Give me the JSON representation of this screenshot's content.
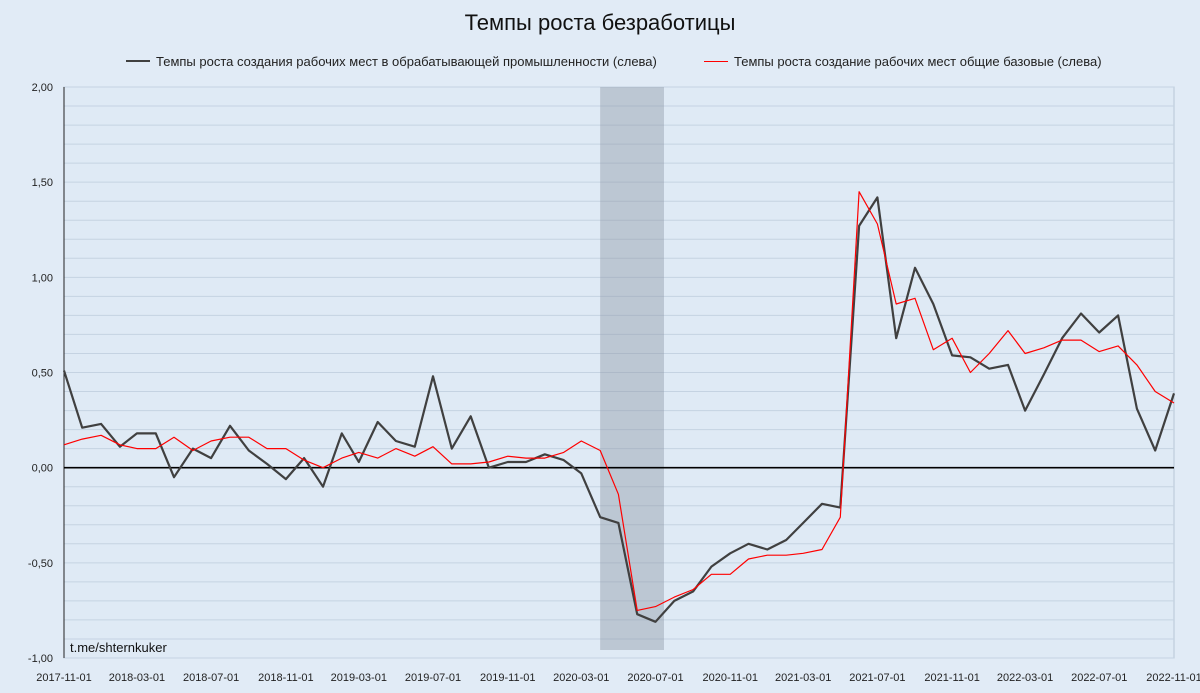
{
  "chart_data": {
    "type": "line",
    "title": "Темпы роста безработицы",
    "xlabel": "",
    "ylabel": "",
    "ylim": [
      -1.0,
      2.0
    ],
    "yticks": [
      "-1,00",
      "-0,50",
      "0,00",
      "0,50",
      "1,00",
      "1,50",
      "2,00"
    ],
    "ytick_values": [
      -1.0,
      -0.5,
      0.0,
      0.5,
      1.0,
      1.5,
      2.0
    ],
    "xlim": [
      "2017-11-01",
      "2022-11-01"
    ],
    "xticks": [
      "2017-11-01",
      "2018-03-01",
      "2018-07-01",
      "2018-11-01",
      "2019-03-01",
      "2019-07-01",
      "2019-11-01",
      "2020-03-01",
      "2020-07-01",
      "2020-11-01",
      "2021-03-01",
      "2021-07-01",
      "2021-11-01",
      "2022-03-01",
      "2022-07-01",
      "2022-11-01"
    ],
    "shaded_period": [
      "2020-04-01",
      "2020-07-15"
    ],
    "grid": true,
    "legend_position": "top",
    "series": [
      {
        "name": "Темпы роста создания рабочих мест в обрабатывающей промышленности (слева)",
        "color": "#404040",
        "points": [
          [
            "2017-11-01",
            0.51
          ],
          [
            "2017-12-01",
            0.21
          ],
          [
            "2018-01-01",
            0.23
          ],
          [
            "2018-02-01",
            0.11
          ],
          [
            "2018-03-01",
            0.18
          ],
          [
            "2018-04-01",
            0.18
          ],
          [
            "2018-05-01",
            -0.05
          ],
          [
            "2018-06-01",
            0.1
          ],
          [
            "2018-07-01",
            0.05
          ],
          [
            "2018-08-01",
            0.22
          ],
          [
            "2018-09-01",
            0.09
          ],
          [
            "2018-10-01",
            0.02
          ],
          [
            "2018-11-01",
            -0.06
          ],
          [
            "2018-12-01",
            0.05
          ],
          [
            "2019-01-01",
            -0.1
          ],
          [
            "2019-02-01",
            0.18
          ],
          [
            "2019-03-01",
            0.03
          ],
          [
            "2019-04-01",
            0.24
          ],
          [
            "2019-05-01",
            0.14
          ],
          [
            "2019-06-01",
            0.11
          ],
          [
            "2019-07-01",
            0.48
          ],
          [
            "2019-08-01",
            0.1
          ],
          [
            "2019-09-01",
            0.27
          ],
          [
            "2019-10-01",
            0.0
          ],
          [
            "2019-11-01",
            0.03
          ],
          [
            "2019-12-01",
            0.03
          ],
          [
            "2020-01-01",
            0.07
          ],
          [
            "2020-02-01",
            0.04
          ],
          [
            "2020-03-01",
            -0.03
          ],
          [
            "2020-04-01",
            -0.26
          ],
          [
            "2020-05-01",
            -0.29
          ],
          [
            "2020-06-01",
            -0.77
          ],
          [
            "2020-07-01",
            -0.81
          ],
          [
            "2020-08-01",
            -0.7
          ],
          [
            "2020-09-01",
            -0.65
          ],
          [
            "2020-10-01",
            -0.52
          ],
          [
            "2020-11-01",
            -0.45
          ],
          [
            "2020-12-01",
            -0.4
          ],
          [
            "2021-01-01",
            -0.43
          ],
          [
            "2021-02-01",
            -0.38
          ],
          [
            "2021-03-01",
            -0.29
          ],
          [
            "2021-04-01",
            -0.19
          ],
          [
            "2021-05-01",
            -0.21
          ],
          [
            "2021-06-01",
            1.27
          ],
          [
            "2021-07-01",
            1.42
          ],
          [
            "2021-08-01",
            0.68
          ],
          [
            "2021-09-01",
            1.05
          ],
          [
            "2021-10-01",
            0.86
          ],
          [
            "2021-11-01",
            0.59
          ],
          [
            "2021-12-01",
            0.58
          ],
          [
            "2022-01-01",
            0.52
          ],
          [
            "2022-02-01",
            0.54
          ],
          [
            "2022-03-01",
            0.3
          ],
          [
            "2022-04-01",
            0.49
          ],
          [
            "2022-05-01",
            0.68
          ],
          [
            "2022-06-01",
            0.81
          ],
          [
            "2022-07-01",
            0.71
          ],
          [
            "2022-08-01",
            0.8
          ],
          [
            "2022-09-01",
            0.31
          ],
          [
            "2022-10-01",
            0.09
          ],
          [
            "2022-11-01",
            0.39
          ]
        ]
      },
      {
        "name": "Темпы роста создание рабочих мест общие базовые (слева)",
        "color": "#ff0000",
        "points": [
          [
            "2017-11-01",
            0.12
          ],
          [
            "2017-12-01",
            0.15
          ],
          [
            "2018-01-01",
            0.17
          ],
          [
            "2018-02-01",
            0.12
          ],
          [
            "2018-03-01",
            0.1
          ],
          [
            "2018-04-01",
            0.1
          ],
          [
            "2018-05-01",
            0.16
          ],
          [
            "2018-06-01",
            0.09
          ],
          [
            "2018-07-01",
            0.14
          ],
          [
            "2018-08-01",
            0.16
          ],
          [
            "2018-09-01",
            0.16
          ],
          [
            "2018-10-01",
            0.1
          ],
          [
            "2018-11-01",
            0.1
          ],
          [
            "2018-12-01",
            0.04
          ],
          [
            "2019-01-01",
            0.0
          ],
          [
            "2019-02-01",
            0.05
          ],
          [
            "2019-03-01",
            0.08
          ],
          [
            "2019-04-01",
            0.05
          ],
          [
            "2019-05-01",
            0.1
          ],
          [
            "2019-06-01",
            0.06
          ],
          [
            "2019-07-01",
            0.11
          ],
          [
            "2019-08-01",
            0.02
          ],
          [
            "2019-09-01",
            0.02
          ],
          [
            "2019-10-01",
            0.03
          ],
          [
            "2019-11-01",
            0.06
          ],
          [
            "2019-12-01",
            0.05
          ],
          [
            "2020-01-01",
            0.05
          ],
          [
            "2020-02-01",
            0.08
          ],
          [
            "2020-03-01",
            0.14
          ],
          [
            "2020-04-01",
            0.09
          ],
          [
            "2020-05-01",
            -0.14
          ],
          [
            "2020-06-01",
            -0.75
          ],
          [
            "2020-07-01",
            -0.73
          ],
          [
            "2020-08-01",
            -0.68
          ],
          [
            "2020-09-01",
            -0.64
          ],
          [
            "2020-10-01",
            -0.56
          ],
          [
            "2020-11-01",
            -0.56
          ],
          [
            "2020-12-01",
            -0.48
          ],
          [
            "2021-01-01",
            -0.46
          ],
          [
            "2021-02-01",
            -0.46
          ],
          [
            "2021-03-01",
            -0.45
          ],
          [
            "2021-04-01",
            -0.43
          ],
          [
            "2021-05-01",
            -0.26
          ],
          [
            "2021-06-01",
            1.45
          ],
          [
            "2021-07-01",
            1.28
          ],
          [
            "2021-08-01",
            0.86
          ],
          [
            "2021-09-01",
            0.89
          ],
          [
            "2021-10-01",
            0.62
          ],
          [
            "2021-11-01",
            0.68
          ],
          [
            "2021-12-01",
            0.5
          ],
          [
            "2022-01-01",
            0.6
          ],
          [
            "2022-02-01",
            0.72
          ],
          [
            "2022-03-01",
            0.6
          ],
          [
            "2022-04-01",
            0.63
          ],
          [
            "2022-05-01",
            0.67
          ],
          [
            "2022-06-01",
            0.67
          ],
          [
            "2022-07-01",
            0.61
          ],
          [
            "2022-08-01",
            0.64
          ],
          [
            "2022-09-01",
            0.54
          ],
          [
            "2022-10-01",
            0.4
          ],
          [
            "2022-11-01",
            0.34
          ]
        ]
      }
    ]
  },
  "watermark": "t.me/shternkuker"
}
